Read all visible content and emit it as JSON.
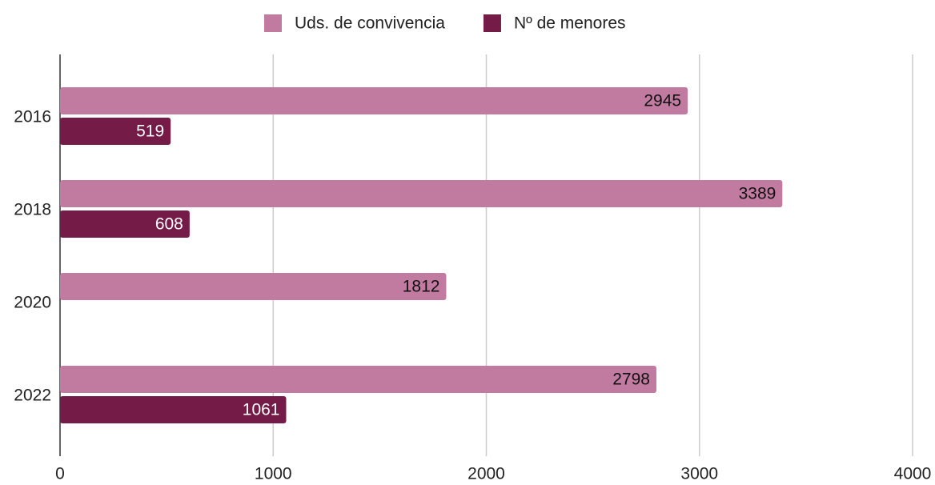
{
  "chart_data": {
    "type": "hbar",
    "categories": [
      "2016",
      "2018",
      "2020",
      "2022"
    ],
    "series": [
      {
        "name": "Uds. de convivencia",
        "color": "#c27ba0",
        "values": [
          2945,
          3389,
          1812,
          2798
        ]
      },
      {
        "name": "Nº de menores",
        "color": "#741b47",
        "values": [
          519,
          608,
          null,
          1061
        ]
      }
    ],
    "xlim": [
      0,
      4000
    ],
    "xticks": [
      0,
      1000,
      2000,
      3000,
      4000
    ],
    "grid": true,
    "legend": "top"
  }
}
